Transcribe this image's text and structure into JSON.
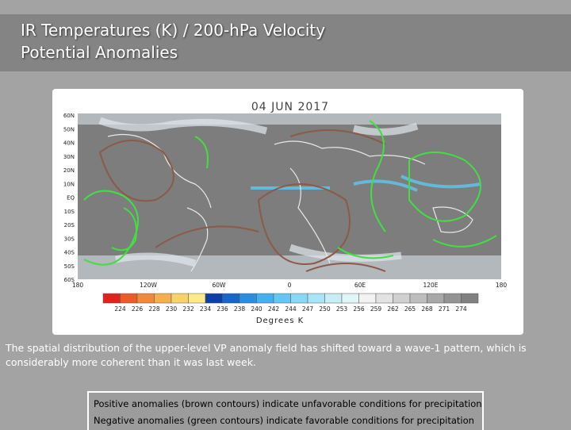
{
  "header": {
    "title_lines": [
      "IR Temperatures (K) / 200-hPa Velocity",
      "Potential Anomalies"
    ]
  },
  "map": {
    "date": "04 JUN 2017",
    "lat_labels": [
      "60N",
      "50N",
      "40N",
      "30N",
      "20N",
      "10N",
      "EQ",
      "10S",
      "20S",
      "30S",
      "40S",
      "50S",
      "60S"
    ],
    "lon_labels": [
      "180",
      "120W",
      "60W",
      "0",
      "60E",
      "120E",
      "180"
    ],
    "colorbar_labels": [
      "224",
      "226",
      "228",
      "230",
      "232",
      "234",
      "236",
      "238",
      "240",
      "242",
      "244",
      "247",
      "250",
      "253",
      "256",
      "259",
      "262",
      "265",
      "268",
      "271",
      "274"
    ],
    "colorbar_title": "Degrees K"
  },
  "body": {
    "paragraph": "The spatial distribution of the upper-level VP anomaly field has shifted toward a wave-1 pattern, which is considerably more coherent than it was last week."
  },
  "legend_box": {
    "lines": [
      "Positive anomalies (brown contours) indicate unfavorable conditions for precipitation",
      "Negative anomalies (green contours) indicate favorable conditions for precipitation"
    ]
  }
}
